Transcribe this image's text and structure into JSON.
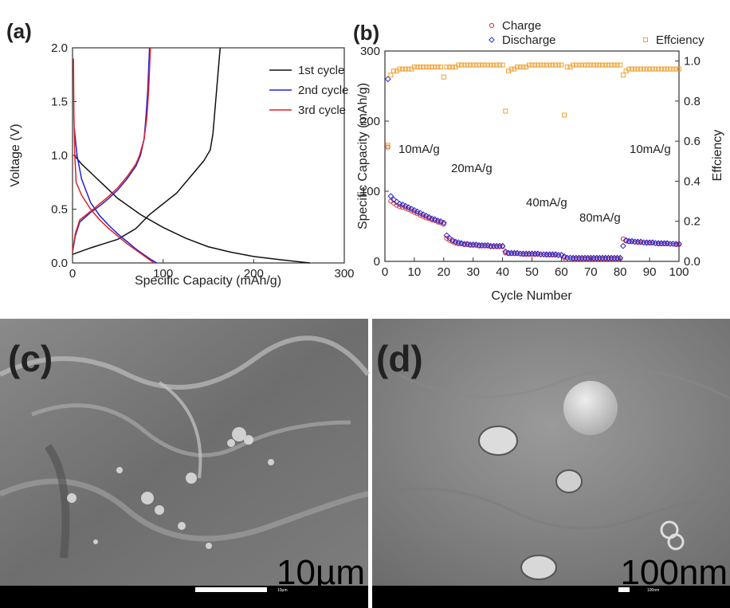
{
  "chart_data": [
    {
      "type": "line",
      "panel_label": "(a)",
      "x_label": "Specific Capacity (mAh/g)",
      "y_label": "Voltage (V)",
      "xlim": [
        0,
        300
      ],
      "xticks": [
        0,
        100,
        200,
        300
      ],
      "ylim": [
        0,
        2.0
      ],
      "yticks": [
        {
          "value": 0,
          "label": "0.0"
        },
        {
          "value": 0.5,
          "label": "0.5"
        },
        {
          "value": 1.0,
          "label": "1.0"
        },
        {
          "value": 1.5,
          "label": "1.5"
        },
        {
          "value": 2.0,
          "label": "2.0"
        }
      ],
      "legend": "upper right",
      "series": [
        {
          "name": "1st cycle",
          "color": "#111111",
          "x": [
            2,
            10,
            25,
            50,
            75,
            100,
            125,
            150,
            175,
            200,
            230,
            262,
            null,
            0,
            20,
            50,
            70,
            85,
            100,
            115,
            130,
            145,
            152,
            155,
            157,
            159,
            161,
            163
          ],
          "values": [
            1.0,
            0.92,
            0.8,
            0.6,
            0.45,
            0.33,
            0.23,
            0.15,
            0.1,
            0.06,
            0.03,
            0.0,
            null,
            0.08,
            0.14,
            0.22,
            0.32,
            0.45,
            0.55,
            0.65,
            0.8,
            0.95,
            1.05,
            1.2,
            1.4,
            1.6,
            1.8,
            2.0
          ]
        },
        {
          "name": "2nd cycle",
          "color": "#2222dd",
          "x": [
            2,
            5,
            10,
            20,
            30,
            40,
            50,
            60,
            70,
            80,
            87,
            93,
            null,
            0,
            3,
            8,
            20,
            30,
            40,
            50,
            60,
            70,
            75,
            79,
            81,
            83,
            85
          ],
          "values": [
            1.25,
            1.0,
            0.78,
            0.56,
            0.44,
            0.35,
            0.27,
            0.2,
            0.13,
            0.07,
            0.03,
            0.0,
            null,
            0.1,
            0.25,
            0.38,
            0.47,
            0.53,
            0.6,
            0.68,
            0.78,
            0.9,
            1.0,
            1.15,
            1.35,
            1.6,
            2.0
          ]
        },
        {
          "name": "3rd cycle",
          "color": "#dd2222",
          "x": [
            1,
            1.5,
            2.5,
            4,
            10,
            20,
            30,
            40,
            50,
            60,
            70,
            80,
            90,
            null,
            0,
            3,
            8,
            20,
            30,
            40,
            50,
            60,
            70,
            74,
            79,
            82,
            84,
            86
          ],
          "values": [
            1.9,
            1.4,
            1.0,
            0.75,
            0.63,
            0.5,
            0.4,
            0.32,
            0.25,
            0.18,
            0.12,
            0.06,
            0.0,
            null,
            0.1,
            0.27,
            0.4,
            0.48,
            0.55,
            0.62,
            0.7,
            0.8,
            0.92,
            1.0,
            1.15,
            1.35,
            1.6,
            2.0
          ]
        }
      ]
    },
    {
      "type": "scatter",
      "panel_label": "(b)",
      "x_label": "Cycle Number",
      "y_label": "Specific Capacity (mAh/g)",
      "y2_label": "Effciency",
      "xlim": [
        0,
        100
      ],
      "xticks": [
        0,
        10,
        20,
        30,
        40,
        50,
        60,
        70,
        80,
        90,
        100
      ],
      "ylim": [
        0,
        300
      ],
      "yticks": [
        0,
        100,
        200,
        300
      ],
      "y2lim": [
        0,
        1.05
      ],
      "y2ticks": [
        {
          "value": 0,
          "label": "0.0"
        },
        {
          "value": 0.2,
          "label": "0.2"
        },
        {
          "value": 0.4,
          "label": "0.4"
        },
        {
          "value": 0.6,
          "label": "0.6"
        },
        {
          "value": 0.8,
          "label": "0.8"
        },
        {
          "value": 1.0,
          "label": "1.0"
        }
      ],
      "legend": "top",
      "annotations": [
        "10mA/g",
        "20mA/g",
        "40mA/g",
        "80mA/g",
        "10mA/g"
      ],
      "x": [
        1,
        2,
        3,
        4,
        5,
        6,
        7,
        8,
        9,
        10,
        11,
        12,
        13,
        14,
        15,
        16,
        17,
        18,
        19,
        20,
        21,
        22,
        23,
        24,
        25,
        26,
        27,
        28,
        29,
        30,
        31,
        32,
        33,
        34,
        35,
        36,
        37,
        38,
        39,
        40,
        41,
        42,
        43,
        44,
        45,
        46,
        47,
        48,
        49,
        50,
        51,
        52,
        53,
        54,
        55,
        56,
        57,
        58,
        59,
        60,
        61,
        62,
        63,
        64,
        65,
        66,
        67,
        68,
        69,
        70,
        71,
        72,
        73,
        74,
        75,
        76,
        77,
        78,
        79,
        80,
        81,
        82,
        83,
        84,
        85,
        86,
        87,
        88,
        89,
        90,
        91,
        92,
        93,
        94,
        95,
        96,
        97,
        98,
        99,
        100
      ],
      "series": [
        {
          "name": "Charge",
          "color": "#e03030",
          "marker": "circle",
          "values": [
            163,
            86,
            83,
            80,
            78,
            77,
            76,
            74,
            72,
            70,
            68,
            66,
            64,
            62,
            61,
            59,
            58,
            56,
            55,
            53,
            33,
            30,
            28,
            26,
            25,
            25,
            24,
            24,
            23,
            23,
            23,
            22,
            22,
            22,
            22,
            21,
            21,
            21,
            21,
            21,
            12,
            11,
            11,
            11,
            11,
            11,
            10,
            10,
            10,
            10,
            10,
            10,
            10,
            10,
            9,
            9,
            9,
            9,
            9,
            9,
            5,
            5,
            5,
            4,
            4,
            4,
            4,
            4,
            4,
            4,
            4,
            4,
            4,
            4,
            4,
            4,
            4,
            4,
            4,
            4,
            32,
            29,
            28,
            28,
            28,
            27,
            27,
            27,
            26,
            26,
            26,
            26,
            25,
            25,
            25,
            25,
            25,
            25,
            24,
            24
          ]
        },
        {
          "name": "Discharge",
          "color": "#2a2ad0",
          "marker": "diamond",
          "values": [
            260,
            93,
            88,
            85,
            82,
            81,
            79,
            77,
            75,
            73,
            71,
            69,
            67,
            65,
            63,
            61,
            60,
            58,
            57,
            55,
            37,
            33,
            30,
            28,
            27,
            26,
            25,
            25,
            24,
            24,
            24,
            23,
            23,
            23,
            23,
            22,
            22,
            22,
            22,
            22,
            14,
            12,
            12,
            12,
            12,
            11,
            11,
            11,
            11,
            11,
            11,
            11,
            10,
            10,
            10,
            10,
            10,
            10,
            9,
            9,
            7,
            5,
            5,
            5,
            5,
            5,
            5,
            5,
            5,
            5,
            5,
            5,
            5,
            5,
            5,
            5,
            5,
            5,
            5,
            5,
            22,
            30,
            29,
            29,
            28,
            28,
            28,
            27,
            27,
            27,
            27,
            26,
            26,
            26,
            26,
            26,
            25,
            25,
            25,
            25
          ]
        },
        {
          "name": "Effciency",
          "color": "#f0a030",
          "marker": "square",
          "axis": "y2",
          "values": [
            0.58,
            0.93,
            0.95,
            0.95,
            0.96,
            0.96,
            0.96,
            0.96,
            0.96,
            0.97,
            0.97,
            0.97,
            0.97,
            0.97,
            0.97,
            0.97,
            0.97,
            0.97,
            0.97,
            0.92,
            0.97,
            0.97,
            0.97,
            0.97,
            0.98,
            0.98,
            0.98,
            0.98,
            0.98,
            0.98,
            0.98,
            0.98,
            0.98,
            0.98,
            0.98,
            0.98,
            0.98,
            0.98,
            0.98,
            0.98,
            0.75,
            0.95,
            0.96,
            0.96,
            0.97,
            0.97,
            0.97,
            0.97,
            0.98,
            0.98,
            0.98,
            0.98,
            0.98,
            0.98,
            0.98,
            0.98,
            0.98,
            0.98,
            0.98,
            0.98,
            0.73,
            0.97,
            0.97,
            0.98,
            0.98,
            0.98,
            0.98,
            0.98,
            0.98,
            0.98,
            0.98,
            0.98,
            0.98,
            0.98,
            0.98,
            0.98,
            0.98,
            0.98,
            0.98,
            0.98,
            0.93,
            0.95,
            0.96,
            0.96,
            0.96,
            0.96,
            0.96,
            0.96,
            0.96,
            0.96,
            0.96,
            0.96,
            0.96,
            0.96,
            0.96,
            0.96,
            0.96,
            0.96,
            0.96,
            0.96
          ]
        }
      ]
    }
  ],
  "images": [
    {
      "panel_label": "(c)",
      "scale": "10µm",
      "bar_label": "10μm"
    },
    {
      "panel_label": "(d)",
      "scale": "100nm",
      "bar_label": "100nm"
    }
  ]
}
